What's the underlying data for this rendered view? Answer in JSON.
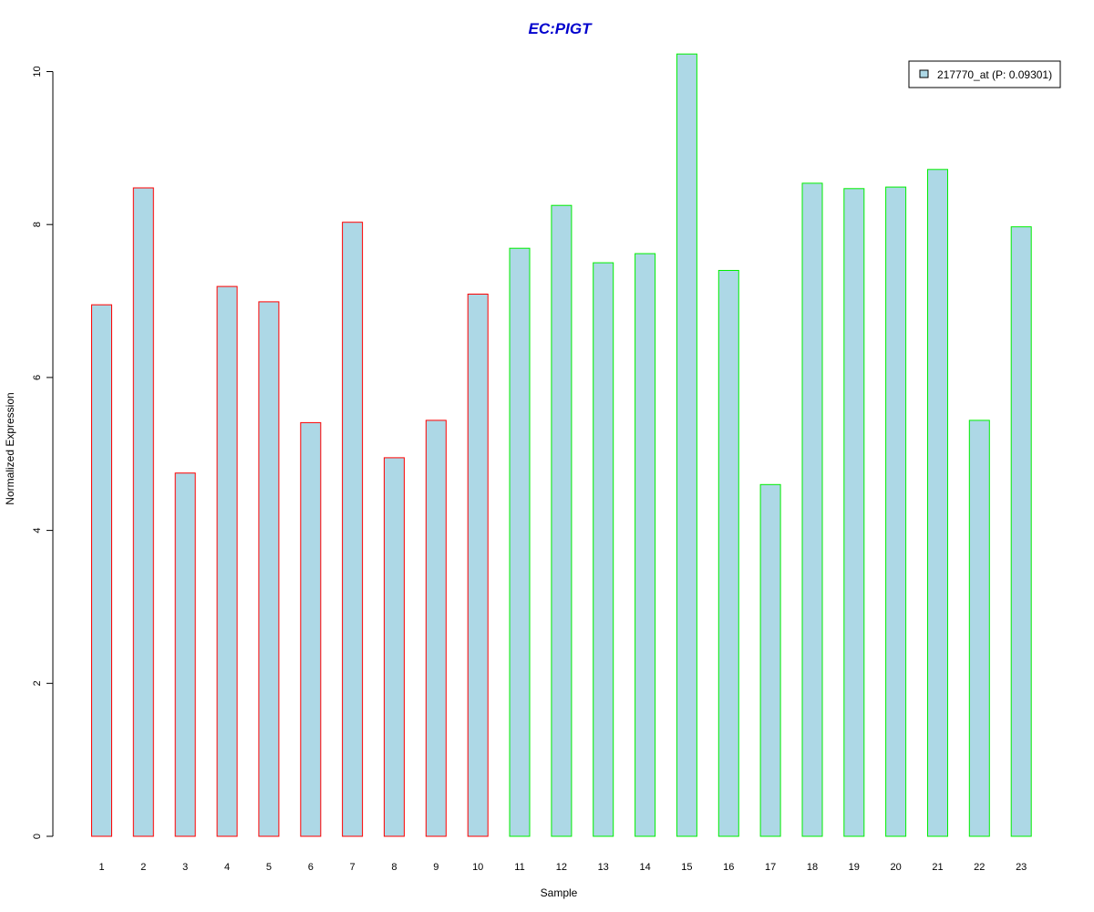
{
  "chart_data": {
    "type": "bar",
    "title": "EC:PIGT",
    "xlabel": "Sample",
    "ylabel": "Normalized Expression",
    "ylim": [
      0,
      10.2
    ],
    "yticks": [
      0,
      2,
      4,
      6,
      8,
      10
    ],
    "categories": [
      "1",
      "2",
      "3",
      "4",
      "5",
      "6",
      "7",
      "8",
      "9",
      "10",
      "11",
      "12",
      "13",
      "14",
      "15",
      "16",
      "17",
      "18",
      "19",
      "20",
      "21",
      "22",
      "23"
    ],
    "values": [
      6.95,
      8.48,
      4.75,
      7.19,
      6.99,
      5.41,
      8.03,
      4.95,
      5.44,
      7.09,
      7.69,
      8.25,
      7.5,
      7.62,
      10.23,
      7.4,
      4.6,
      8.54,
      8.47,
      8.49,
      8.72,
      5.44,
      7.97
    ],
    "groups": [
      "a",
      "a",
      "a",
      "a",
      "a",
      "a",
      "a",
      "a",
      "a",
      "a",
      "b",
      "b",
      "b",
      "b",
      "b",
      "b",
      "b",
      "b",
      "b",
      "b",
      "b",
      "b",
      "b"
    ],
    "group_colors": {
      "a": "#ff0000",
      "b": "#00ee00"
    },
    "fill_color": "#add8e6",
    "title_color": "#0000cd",
    "grid": false,
    "legend": {
      "placement": "top-right",
      "label": "217770_at (P: 0.09301)"
    }
  }
}
